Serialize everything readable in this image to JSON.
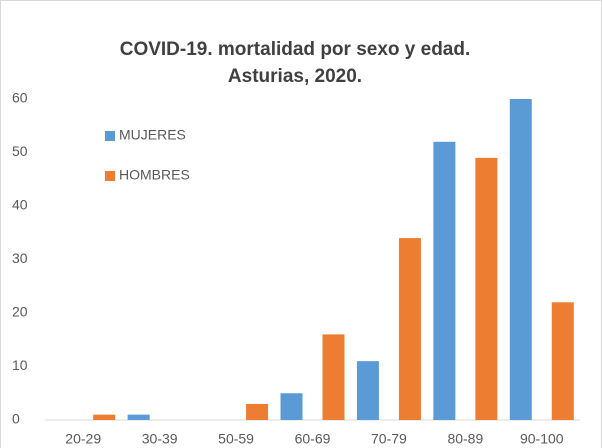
{
  "chart_data": {
    "type": "bar",
    "title": [
      "COVID-19. mortalidad por sexo y edad.",
      "Asturias, 2020."
    ],
    "categories": [
      "20-29",
      "30-39",
      "50-59",
      "60-69",
      "70-79",
      "80-89",
      "90-100"
    ],
    "series": [
      {
        "name": "MUJERES",
        "color": "#5b9bd5",
        "values": [
          0,
          1,
          0,
          5,
          11,
          52,
          60
        ]
      },
      {
        "name": "HOMBRES",
        "color": "#ed7d31",
        "values": [
          1,
          0,
          3,
          16,
          34,
          49,
          22
        ]
      }
    ],
    "ylim": [
      0,
      60
    ],
    "yticks": [
      0,
      10,
      20,
      30,
      40,
      50,
      60
    ],
    "grid": false,
    "legend": "upper left"
  }
}
